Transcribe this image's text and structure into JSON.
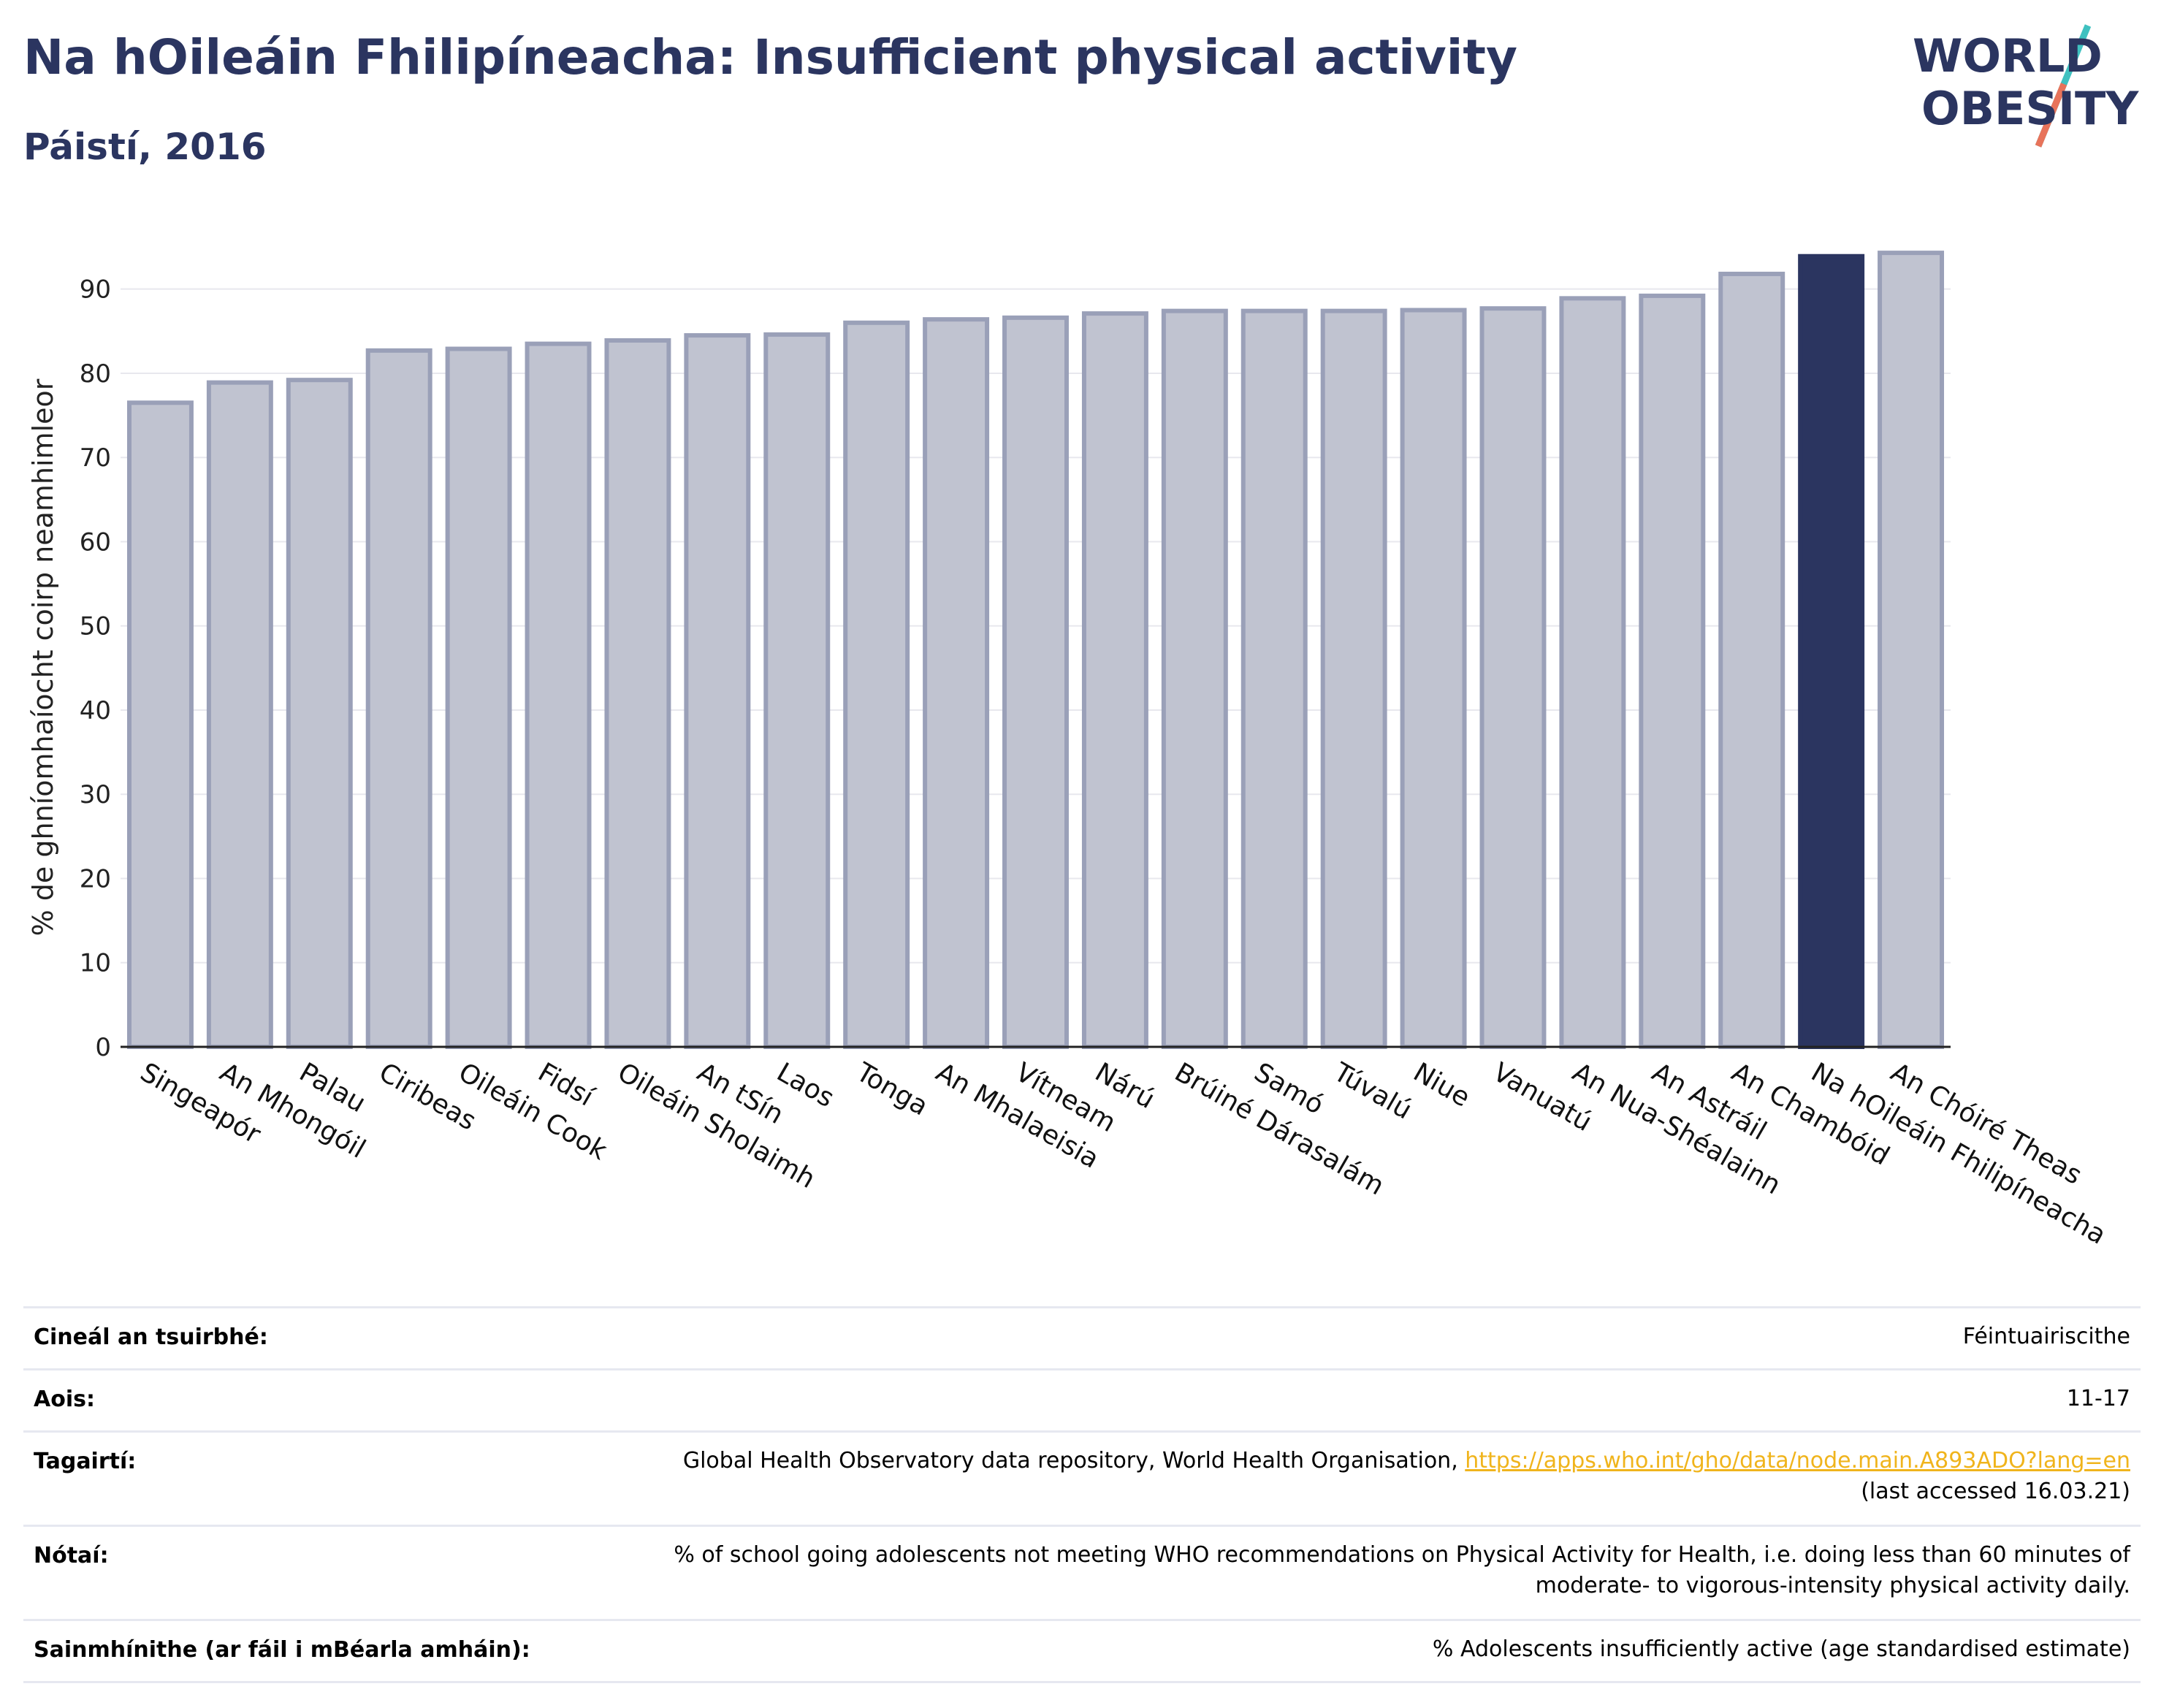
{
  "header": {
    "title": "Na hOileáin Fhilipíneacha: Insufficient physical activity",
    "subtitle": "Páistí, 2016"
  },
  "logo": {
    "line1": "WORLD",
    "line2": "OBESITY"
  },
  "chart_data": {
    "type": "bar",
    "title": "Na hOileáin Fhilipíneacha: Insufficient physical activity",
    "subtitle": "Páistí, 2016",
    "ylabel": "% de ghníomhaíocht coirp neamhimleor",
    "xlabel": "",
    "ylim": [
      0,
      97
    ],
    "yticks": [
      0,
      10,
      20,
      30,
      40,
      50,
      60,
      70,
      80,
      90
    ],
    "grid": true,
    "categories": [
      "Singeapór",
      "An Mhongóil",
      "Palau",
      "Ciribeas",
      "Oileáin Cook",
      "Fidsí",
      "Oileáin Sholaimh",
      "An tSín",
      "Laos",
      "Tonga",
      "An Mhalaeisia",
      "Vítneam",
      "Nárú",
      "Brúiné Dárasalám",
      "Samó",
      "Túvalú",
      "Niue",
      "Vanuatú",
      "An Nua-Shéalainn",
      "An Astráil",
      "An Chambóid",
      "Na hOileáin Fhilipíneacha",
      "An Chóiré Theas"
    ],
    "values": [
      76.5,
      78.9,
      79.2,
      82.7,
      82.9,
      83.5,
      83.9,
      84.5,
      84.6,
      86.0,
      86.4,
      86.6,
      87.1,
      87.4,
      87.4,
      87.4,
      87.5,
      87.7,
      88.9,
      89.2,
      91.8,
      93.9,
      94.3
    ],
    "highlight": "Na hOileáin Fhilipíneacha",
    "colors": {
      "bar": "#c0c3d0",
      "bar_border": "#9aa0b8",
      "highlight": "#2b3560",
      "grid": "#e8e8ee"
    }
  },
  "meta": {
    "rows": [
      {
        "key": "Cineál an tsuirbhé:",
        "value": "Féintuairiscithe"
      },
      {
        "key": "Aois:",
        "value": "11-17"
      },
      {
        "key": "Tagairtí:",
        "value": "Global Health Observatory data repository, World Health Organisation, ",
        "link": "https://apps.who.int/gho/data/node.main.A893ADO?lang=en",
        "value2": "(last accessed 16.03.21)"
      },
      {
        "key": "Nótaí:",
        "value": "% of school going adolescents not meeting WHO recommendations on Physical Activity for Health, i.e. doing less than 60 minutes of",
        "value2": "moderate- to vigorous-intensity physical activity daily."
      },
      {
        "key": "Sainmhínithe (ar fáil i mBéarla amháin):",
        "value": "% Adolescents insufficiently active (age standardised estimate)"
      }
    ]
  }
}
